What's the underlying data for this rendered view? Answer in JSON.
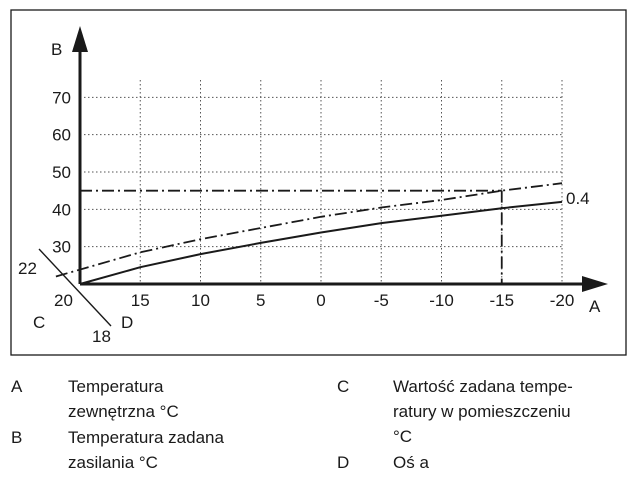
{
  "chart_data": {
    "type": "line",
    "x_axis_letter": "A",
    "y_axis_letter": "B",
    "x_ticks": [
      15,
      10,
      5,
      0,
      -5,
      -10,
      -15,
      -20
    ],
    "x_ticks_labels": [
      "15",
      "10",
      "5",
      "0",
      "-5",
      "-10",
      "-15",
      "-20"
    ],
    "y_ticks": [
      30,
      40,
      50,
      60,
      70
    ],
    "y_ticks_labels": [
      "30",
      "40",
      "50",
      "60",
      "70"
    ],
    "xlim": [
      20,
      -20
    ],
    "ylim": [
      20,
      80
    ],
    "grid": true,
    "origin_label": "20",
    "offset_axis": {
      "c_letter": "C",
      "d_letter": "D",
      "upper_value": "22",
      "lower_value": "18"
    },
    "series": [
      {
        "name": "0.4",
        "style": "solid",
        "x": [
          20,
          15,
          10,
          5,
          0,
          -5,
          -10,
          -15,
          -20
        ],
        "y": [
          20,
          24.5,
          28,
          31,
          33.8,
          36.3,
          38.3,
          40.3,
          42
        ]
      },
      {
        "style": "dash-dot",
        "x": [
          22,
          15,
          10,
          5,
          0,
          -5,
          -10,
          -15,
          -20
        ],
        "y": [
          22,
          28.5,
          32,
          35,
          38,
          40.5,
          42.5,
          45,
          47
        ]
      }
    ],
    "annotations": {
      "horizontal_ref_y": 45,
      "vertical_ref_x": -15
    }
  },
  "legend": {
    "a_key": "A",
    "a_text_line1": "Temperatura",
    "a_text_line2": "zewnętrzna °C",
    "b_key": "B",
    "b_text_line1": "Temperatura zadana",
    "b_text_line2": "zasilania °C",
    "c_key": "C",
    "c_text_line1": "Wartość zadana tempe-",
    "c_text_line2": "ratury w pomieszczeniu",
    "c_text_line3": "°C",
    "d_key": "D",
    "d_text_line1": "Oś a"
  }
}
